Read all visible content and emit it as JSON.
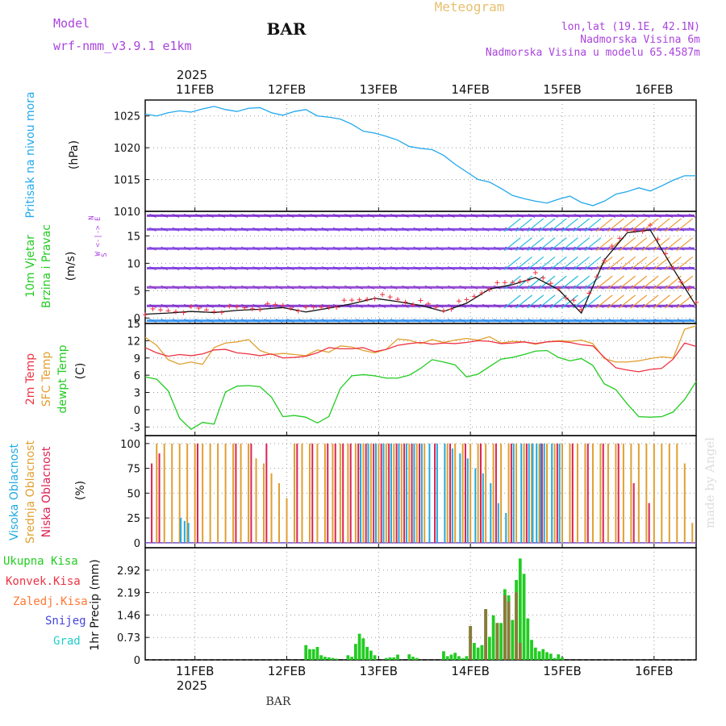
{
  "header": {
    "model_label": "Model",
    "model_name": "wrf-nmm_v3.9.1 e1km",
    "station": "BAR",
    "product": "Meteogram",
    "coords": "lon,lat (19.1E, 42.1N)",
    "elevation": "Nadmorska Visina 6m",
    "model_elevation": "Nadmorska Visina u modelu 65.4587m",
    "watermark": "made by Angel",
    "footer_station": "BAR"
  },
  "time_axis": {
    "year": "2025",
    "days": [
      "11FEB",
      "12FEB",
      "13FEB",
      "14FEB",
      "15FEB",
      "16FEB"
    ],
    "start_hours_before_first_day": 13,
    "span_hours": 144
  },
  "colors": {
    "pressure": "#22a8ee",
    "wind_label": "#22cc22",
    "wind_arrow_label": "#aa44dd",
    "temp2m": "#ee3344",
    "sfc": "#e0a030",
    "dewpt": "#22cc22",
    "high_cloud": "#22aadd",
    "mid_cloud": "#e0a030",
    "low_cloud": "#dd2255",
    "total_precip": "#22cc22",
    "conv_precip": "#ee3344",
    "frozen_precip": "#ff7733",
    "snow": "#4444dd",
    "hail": "#22cccc",
    "header_purple": "#aa44dd",
    "header_orange": "#e8c070"
  },
  "chart_data": [
    {
      "type": "line",
      "panel": "pressure",
      "ylabel": "Pritisak na nivou mora",
      "unit": "(hPa)",
      "ylim": [
        1010,
        1027.5
      ],
      "yticks": [
        1010,
        1015,
        1020,
        1025
      ],
      "grid": true,
      "series": [
        {
          "x": [
            0,
            3,
            6,
            9,
            12,
            15,
            18,
            21,
            24,
            27,
            30,
            33,
            36,
            39,
            42,
            45,
            48,
            51,
            54,
            57,
            60,
            63,
            66,
            69,
            72,
            75,
            78,
            81,
            84,
            87,
            90,
            93,
            96,
            99,
            102,
            105,
            108,
            111,
            114,
            117,
            120,
            123,
            126,
            129,
            132,
            135,
            138,
            141,
            144
          ],
          "values": [
            1025.3,
            1025.0,
            1025.5,
            1025.8,
            1025.6,
            1026.1,
            1026.5,
            1026.0,
            1025.7,
            1026.2,
            1026.3,
            1025.5,
            1025.1,
            1025.7,
            1026.0,
            1025.0,
            1024.8,
            1024.5,
            1023.7,
            1022.6,
            1022.3,
            1021.8,
            1021.2,
            1020.2,
            1019.9,
            1019.7,
            1018.8,
            1017.4,
            1016.2,
            1015.0,
            1014.6,
            1013.6,
            1012.5,
            1012.0,
            1011.6,
            1011.3,
            1011.9,
            1012.4,
            1011.4,
            1010.9,
            1011.6,
            1012.7,
            1013.1,
            1013.7,
            1013.2,
            1014.0,
            1014.9,
            1015.6,
            1015.6
          ]
        }
      ]
    },
    {
      "type": "line",
      "panel": "wind",
      "ylabel": "10m Vjetar Brzina i Pravac",
      "unit": "(m/s)",
      "arrow_legend": [
        "N",
        "W <-|-> E",
        "S"
      ],
      "ylim": [
        -1,
        19.5
      ],
      "yticks": [
        0,
        5,
        10,
        15
      ],
      "grid": true,
      "series": [
        {
          "name": "Brzina",
          "x": [
            0,
            6,
            12,
            18,
            24,
            30,
            36,
            42,
            48,
            54,
            60,
            66,
            72,
            78,
            84,
            90,
            96,
            102,
            108,
            114,
            120,
            126,
            132,
            138,
            144
          ],
          "values": [
            0.7,
            0.9,
            1.2,
            1.0,
            1.4,
            1.6,
            1.9,
            1.1,
            1.8,
            2.6,
            3.6,
            3.0,
            2.3,
            1.2,
            2.7,
            5.3,
            6.1,
            7.4,
            5.2,
            0.9,
            10.6,
            15.6,
            16.1,
            9.0,
            2.2
          ]
        }
      ],
      "arrow_rows": [
        18.7,
        16.2,
        12.7,
        9.1,
        5.6,
        2.2,
        -0.5
      ]
    },
    {
      "type": "line",
      "panel": "temperature",
      "ylabel": "2m Temp SFC Temp dewpt Temp",
      "unit": "(C)",
      "ylim": [
        -4.5,
        15
      ],
      "yticks": [
        -3,
        0,
        3,
        6,
        9,
        12,
        15
      ],
      "grid": true,
      "series": [
        {
          "name": "2m Temp",
          "x": [
            0,
            3,
            6,
            9,
            12,
            15,
            18,
            21,
            24,
            27,
            30,
            33,
            36,
            39,
            42,
            45,
            48,
            51,
            54,
            57,
            60,
            63,
            66,
            69,
            72,
            75,
            78,
            81,
            84,
            87,
            90,
            93,
            96,
            99,
            102,
            105,
            108,
            111,
            114,
            117,
            120,
            123,
            126,
            129,
            132,
            135,
            138,
            141,
            144
          ],
          "values": [
            10.8,
            9.9,
            9.3,
            9.6,
            9.4,
            9.7,
            10.4,
            10.5,
            9.9,
            9.7,
            9.4,
            9.7,
            9.0,
            9.1,
            9.3,
            9.9,
            10.8,
            10.6,
            10.6,
            10.8,
            10.1,
            10.5,
            11.2,
            11.5,
            11.7,
            11.4,
            11.6,
            11.5,
            11.7,
            12.0,
            11.9,
            11.5,
            11.6,
            11.8,
            11.5,
            11.8,
            11.9,
            11.7,
            11.3,
            11.1,
            9.1,
            7.3,
            6.9,
            6.6,
            7.0,
            7.2,
            8.8,
            11.6,
            11.0
          ]
        },
        {
          "name": "SFC Temp",
          "x": [
            0,
            3,
            6,
            9,
            12,
            15,
            18,
            21,
            24,
            27,
            30,
            33,
            36,
            39,
            42,
            45,
            48,
            51,
            54,
            57,
            60,
            63,
            66,
            69,
            72,
            75,
            78,
            81,
            84,
            87,
            90,
            93,
            96,
            99,
            102,
            105,
            108,
            111,
            114,
            117,
            120,
            123,
            126,
            129,
            132,
            135,
            138,
            141,
            144
          ],
          "values": [
            12.6,
            11.2,
            8.7,
            7.9,
            8.3,
            7.9,
            10.8,
            11.6,
            11.8,
            12.2,
            10.3,
            9.6,
            9.8,
            9.6,
            9.4,
            10.4,
            10.0,
            11.1,
            10.9,
            10.3,
            9.9,
            10.5,
            12.3,
            12.1,
            11.5,
            12.2,
            11.7,
            12.1,
            12.4,
            12.1,
            12.7,
            11.6,
            11.9,
            11.8,
            11.4,
            11.8,
            12.0,
            11.9,
            12.1,
            11.5,
            8.9,
            8.3,
            8.3,
            8.5,
            8.9,
            9.2,
            9.0,
            14.0,
            14.6
          ]
        },
        {
          "name": "dewpt Temp",
          "x": [
            0,
            3,
            6,
            9,
            12,
            15,
            18,
            21,
            24,
            27,
            30,
            33,
            36,
            39,
            42,
            45,
            48,
            51,
            54,
            57,
            60,
            63,
            66,
            69,
            72,
            75,
            78,
            81,
            84,
            87,
            90,
            93,
            96,
            99,
            102,
            105,
            108,
            111,
            114,
            117,
            120,
            123,
            126,
            129,
            132,
            135,
            138,
            141,
            144
          ],
          "values": [
            5.7,
            5.3,
            3.3,
            -1.5,
            -3.4,
            -2.2,
            -2.5,
            3.1,
            4.1,
            4.2,
            4.0,
            2.2,
            -1.2,
            -1.0,
            -1.3,
            -2.3,
            -1.2,
            3.7,
            5.9,
            6.1,
            5.9,
            5.5,
            5.5,
            6.0,
            7.2,
            8.7,
            8.3,
            7.8,
            5.7,
            6.2,
            7.5,
            8.8,
            9.1,
            9.6,
            10.2,
            10.3,
            9.1,
            8.5,
            8.9,
            7.7,
            4.5,
            3.5,
            1.0,
            -1.2,
            -1.3,
            -1.2,
            -0.4,
            1.8,
            4.9
          ]
        }
      ]
    },
    {
      "type": "bar",
      "panel": "clouds",
      "ylabel": "Visoka Oblacnost Srednja Oblacnost Niska Oblacnost",
      "unit": "(%)",
      "ylim": [
        -5,
        108
      ],
      "yticks": [
        0,
        25,
        50,
        75,
        100
      ],
      "grid": true,
      "series": [
        {
          "name": "Visoka Oblacnost",
          "hours": [
            9,
            10,
            11,
            12,
            13,
            56,
            58,
            60,
            62,
            64,
            66,
            68,
            70,
            72,
            74,
            76,
            78,
            80,
            82,
            84,
            86,
            88,
            90,
            92,
            94,
            96,
            98,
            100,
            101,
            102,
            103,
            104,
            106,
            108
          ],
          "values": [
            25,
            22,
            20,
            0,
            0,
            100,
            100,
            100,
            100,
            100,
            100,
            100,
            100,
            100,
            100,
            100,
            100,
            95,
            90,
            85,
            75,
            70,
            60,
            40,
            30,
            100,
            100,
            100,
            100,
            100,
            100,
            100,
            100,
            100
          ]
        },
        {
          "name": "Srednja Oblacnost",
          "hours": [
            3,
            5,
            7,
            9,
            11,
            13,
            15,
            17,
            19,
            21,
            23,
            25,
            27,
            29,
            31,
            33,
            35,
            37,
            39,
            41,
            43,
            45,
            47,
            49,
            51,
            53,
            55,
            57,
            59,
            61,
            63,
            65,
            67,
            69,
            71,
            73,
            75,
            77,
            79,
            81,
            83,
            85,
            87,
            89,
            91,
            93,
            95,
            97,
            99,
            101,
            103,
            105,
            107,
            109,
            111,
            113,
            115,
            117,
            119,
            121,
            123,
            125,
            127,
            129,
            131,
            133,
            135,
            137,
            139,
            141,
            143
          ],
          "values": [
            100,
            100,
            100,
            100,
            100,
            100,
            100,
            100,
            100,
            100,
            100,
            100,
            100,
            85,
            80,
            70,
            60,
            45,
            100,
            100,
            100,
            100,
            100,
            100,
            100,
            100,
            100,
            100,
            100,
            100,
            100,
            100,
            100,
            100,
            100,
            100,
            0,
            0,
            100,
            100,
            100,
            100,
            100,
            100,
            100,
            100,
            100,
            100,
            100,
            100,
            100,
            100,
            100,
            100,
            100,
            100,
            100,
            100,
            100,
            100,
            100,
            100,
            100,
            100,
            100,
            100,
            100,
            100,
            100,
            80,
            20
          ]
        },
        {
          "name": "Niska Oblacnost",
          "hours": [
            2,
            4,
            14,
            24,
            28,
            32,
            40,
            44,
            48,
            50,
            52,
            54,
            56,
            58,
            60,
            62,
            64,
            66,
            68,
            70,
            72,
            76,
            80,
            84,
            88,
            92,
            96,
            100,
            104,
            108,
            112,
            116,
            120,
            124,
            128,
            132,
            136
          ],
          "values": [
            80,
            90,
            100,
            100,
            100,
            100,
            100,
            100,
            100,
            100,
            100,
            100,
            100,
            100,
            100,
            100,
            100,
            100,
            100,
            100,
            100,
            100,
            100,
            100,
            100,
            100,
            100,
            100,
            100,
            100,
            100,
            100,
            100,
            100,
            60,
            40,
            0
          ]
        }
      ]
    },
    {
      "type": "bar",
      "panel": "precip",
      "ylabel": "1hr Precip (mm)",
      "legend": [
        "Ukupna Kisa",
        "Konvek.Kisa",
        "Zaledj.Kisa",
        "Snijeg",
        "Grad"
      ],
      "ylim": [
        0,
        3.65
      ],
      "yticks": [
        0,
        0.73,
        1.46,
        2.19,
        2.92
      ],
      "grid": true,
      "series": [
        {
          "name": "Ukupna Kisa",
          "hours": [
            42,
            43,
            44,
            45,
            46,
            47,
            48,
            49,
            50,
            53,
            54,
            55,
            56,
            57,
            58,
            59,
            60,
            63,
            64,
            65,
            66,
            69,
            70,
            71,
            78,
            79,
            80,
            81,
            82,
            83,
            84,
            85,
            86,
            87,
            88,
            89,
            90,
            91,
            92,
            93,
            94,
            95,
            96,
            97,
            98,
            99,
            100,
            101,
            102,
            103,
            104,
            105,
            106,
            107,
            108,
            109
          ],
          "values": [
            0.48,
            0.35,
            0.35,
            0.42,
            0.15,
            0.1,
            0.08,
            0.06,
            0.04,
            0.15,
            0.1,
            0.52,
            0.85,
            0.7,
            0.42,
            0.3,
            0.15,
            0.06,
            0.08,
            0.08,
            0.17,
            0.18,
            0.1,
            0.06,
            0.28,
            0.12,
            0.17,
            0.23,
            0.12,
            0.05,
            0.12,
            1.1,
            0.55,
            0.4,
            0.48,
            1.65,
            0.75,
            1.45,
            1.2,
            1.2,
            2.3,
            2.1,
            1.3,
            2.6,
            3.3,
            2.8,
            1.35,
            0.65,
            0.4,
            0.28,
            0.35,
            0.25,
            0.2,
            0.06,
            0.18,
            0.08
          ]
        },
        {
          "name": "Konvek.Kisa",
          "hours": [
            85,
            89,
            92,
            94,
            95,
            97,
            98
          ],
          "values": [
            1.1,
            1.65,
            1.2,
            2.1,
            1.9,
            2.2,
            0.55
          ]
        },
        {
          "name": "Zaledj.Kisa",
          "hours": [],
          "values": []
        },
        {
          "name": "Snijeg",
          "hours": [],
          "values": []
        },
        {
          "name": "Grad",
          "hours": [],
          "values": []
        }
      ]
    }
  ]
}
